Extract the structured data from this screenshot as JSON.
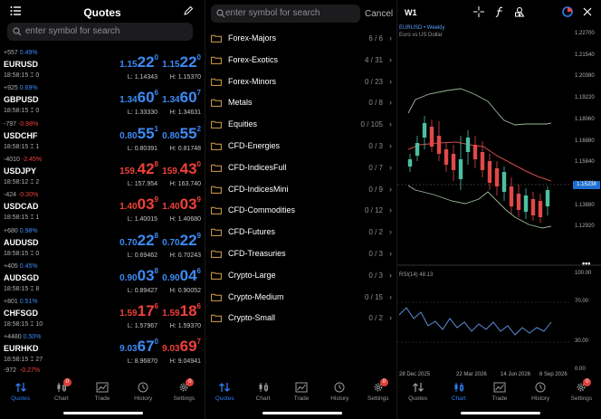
{
  "quotes_panel": {
    "title": "Quotes",
    "search_placeholder": "enter symbol for search",
    "rows": [
      {
        "change": "+557",
        "pct": "0.49%",
        "symbol": "EURUSD",
        "time": "18:58:15 ⌶ 0",
        "bid": {
          "a": "1.15",
          "b": "22",
          "c": "0"
        },
        "ask": {
          "a": "1.15",
          "b": "22",
          "c": "0"
        },
        "low": "L: 1.14343",
        "high": "H: 1.15370",
        "dir": "up"
      },
      {
        "change": "+925",
        "pct": "0.69%",
        "symbol": "GBPUSD",
        "time": "18:58:15 ⌶ 0",
        "bid": {
          "a": "1.34",
          "b": "60",
          "c": "6"
        },
        "ask": {
          "a": "1.34",
          "b": "60",
          "c": "7"
        },
        "low": "L: 1.33330",
        "high": "H: 1.34631",
        "dir": "up"
      },
      {
        "change": "-797",
        "pct": "-0.98%",
        "symbol": "USDCHF",
        "time": "18:58:15 ⌶ 1",
        "bid": {
          "a": "0.80",
          "b": "55",
          "c": "1"
        },
        "ask": {
          "a": "0.80",
          "b": "55",
          "c": "2"
        },
        "low": "L: 0.80391",
        "high": "H: 0.81748",
        "dir": "up"
      },
      {
        "change": "-4010",
        "pct": "-2.45%",
        "symbol": "USDJPY",
        "time": "18:58:12 ⌶ 2",
        "bid": {
          "a": "159.",
          "b": "42",
          "c": "8"
        },
        "ask": {
          "a": "159.",
          "b": "43",
          "c": "0"
        },
        "low": "L: 157.954",
        "high": "H: 163.740",
        "dir": "down"
      },
      {
        "change": "-424",
        "pct": "-0.30%",
        "symbol": "USDCAD",
        "time": "18:58:15 ⌶ 1",
        "bid": {
          "a": "1.40",
          "b": "03",
          "c": "9"
        },
        "ask": {
          "a": "1.40",
          "b": "03",
          "c": "9"
        },
        "low": "L: 1.40015",
        "high": "H: 1.40680",
        "dir": "down"
      },
      {
        "change": "+680",
        "pct": "0.98%",
        "symbol": "AUDUSD",
        "time": "18:58:15 ⌶ 0",
        "bid": {
          "a": "0.70",
          "b": "22",
          "c": "8"
        },
        "ask": {
          "a": "0.70",
          "b": "22",
          "c": "9"
        },
        "low": "L: 0.69462",
        "high": "H: 0.70243",
        "dir": "up"
      },
      {
        "change": "+405",
        "pct": "0.45%",
        "symbol": "AUDSGD",
        "time": "18:58:15 ⌶ 8",
        "bid": {
          "a": "0.90",
          "b": "03",
          "c": "8"
        },
        "ask": {
          "a": "0.90",
          "b": "04",
          "c": "6"
        },
        "low": "L: 0.89427",
        "high": "H: 0.90052",
        "dir": "up"
      },
      {
        "change": "+801",
        "pct": "0.51%",
        "symbol": "CHFSGD",
        "time": "18:58:15 ⌶ 10",
        "bid": {
          "a": "1.59",
          "b": "17",
          "c": "6"
        },
        "ask": {
          "a": "1.59",
          "b": "18",
          "c": "6"
        },
        "low": "L: 1.57967",
        "high": "H: 1.59370",
        "dir": "down"
      },
      {
        "change": "+4480",
        "pct": "0.50%",
        "symbol": "EURHKD",
        "time": "18:58:15 ⌶ 27",
        "bid": {
          "a": "9.03",
          "b": "67",
          "c": "0"
        },
        "ask": {
          "a": "9.03",
          "b": "69",
          "c": "7"
        },
        "low": "L: 8.96870",
        "high": "H: 9.04941",
        "dir": "mixed"
      }
    ],
    "partial_row": {
      "change": "-972",
      "pct": "-0.27%"
    }
  },
  "search_panel": {
    "placeholder": "enter symbol for search",
    "cancel": "Cancel",
    "groups": [
      {
        "name": "Forex-Majors",
        "count": "6 / 6"
      },
      {
        "name": "Forex-Exotics",
        "count": "4 / 31"
      },
      {
        "name": "Forex-Minors",
        "count": "0 / 23"
      },
      {
        "name": "Metals",
        "count": "0 / 8"
      },
      {
        "name": "Equities",
        "count": "0 / 105"
      },
      {
        "name": "CFD-Energies",
        "count": "0 / 3"
      },
      {
        "name": "CFD-IndicesFull",
        "count": "0 / 7"
      },
      {
        "name": "CFD-IndicesMini",
        "count": "0 / 9"
      },
      {
        "name": "CFD-Commodities",
        "count": "0 / 12"
      },
      {
        "name": "CFD-Futures",
        "count": "0 / 2"
      },
      {
        "name": "CFD-Treasuries",
        "count": "0 / 3"
      },
      {
        "name": "Crypto-Large",
        "count": "0 / 3"
      },
      {
        "name": "Crypto-Medium",
        "count": "0 / 15"
      },
      {
        "name": "Crypto-Small",
        "count": "0 / 2"
      }
    ]
  },
  "chart_panel": {
    "timeframe": "W1",
    "symbol_line": "EURUSD • Weekly",
    "description": "Euro vs US Dollar",
    "price_ticks": [
      "1.22700",
      "1.21540",
      "1.20380",
      "1.19220",
      "1.18060",
      "1.16880",
      "1.15840",
      "1.14680",
      "1.13880",
      "1.12920"
    ],
    "current_price": "1.15238",
    "rsi_label": "RSI(14) 48.13",
    "rsi_ticks": [
      "100.00",
      "70.00",
      "30.00",
      "0.00"
    ],
    "date_ticks": [
      "28 Dec 2025",
      "22 Mar 2026",
      "14 Jun 2026",
      "6 Sep 2026"
    ]
  },
  "tabbars": [
    {
      "tabs": [
        {
          "label": "Quotes",
          "icon": "arrows-updown-icon",
          "active": true
        },
        {
          "label": "Chart",
          "icon": "candles-icon",
          "badge": "0"
        },
        {
          "label": "Trade",
          "icon": "trade-chart-icon"
        },
        {
          "label": "History",
          "icon": "history-clock-icon"
        },
        {
          "label": "Settings",
          "icon": "gear-icon",
          "badge": "0"
        }
      ]
    },
    {
      "tabs": [
        {
          "label": "Quotes",
          "icon": "arrows-updown-icon",
          "active": true
        },
        {
          "label": "Chart",
          "icon": "candles-icon"
        },
        {
          "label": "Trade",
          "icon": "trade-chart-icon"
        },
        {
          "label": "History",
          "icon": "history-clock-icon"
        },
        {
          "label": "Settings",
          "icon": "gear-icon",
          "badge": "0"
        }
      ]
    },
    {
      "tabs": [
        {
          "label": "Quotes",
          "icon": "arrows-updown-icon"
        },
        {
          "label": "Chart",
          "icon": "candles-icon",
          "active": true
        },
        {
          "label": "Trade",
          "icon": "trade-chart-icon"
        },
        {
          "label": "History",
          "icon": "history-clock-icon"
        },
        {
          "label": "Settings",
          "icon": "gear-icon",
          "badge": "0"
        }
      ]
    }
  ],
  "colors": {
    "up": "#3d8bf5",
    "down": "#f0413a",
    "accent": "#2f7ef5",
    "folder": "#d9a04a"
  }
}
